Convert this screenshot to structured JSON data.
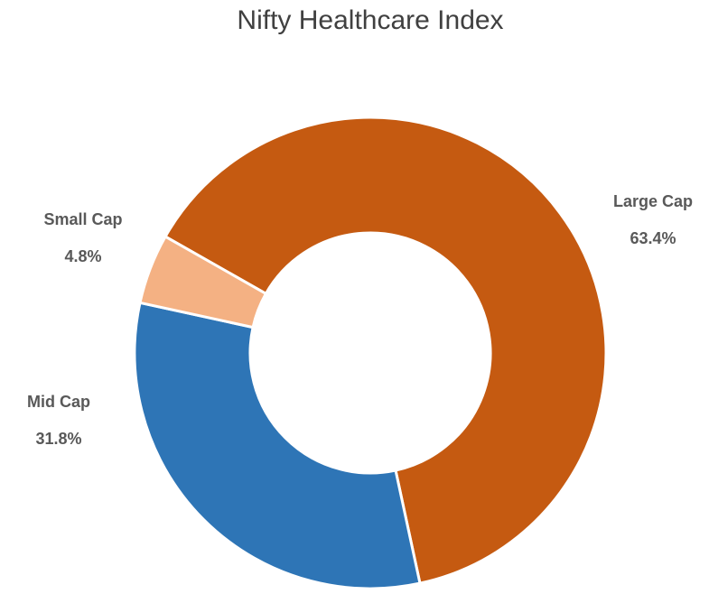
{
  "chart_data": {
    "type": "donut",
    "title": "Nifty Healthcare Index",
    "categories": [
      "Large Cap",
      "Mid Cap",
      "Small Cap"
    ],
    "values": [
      63.4,
      31.8,
      4.8
    ],
    "value_labels": [
      "63.4%",
      "31.8%",
      "4.8%"
    ],
    "colors": [
      "#c55a11",
      "#2e75b6",
      "#f4b183"
    ]
  }
}
